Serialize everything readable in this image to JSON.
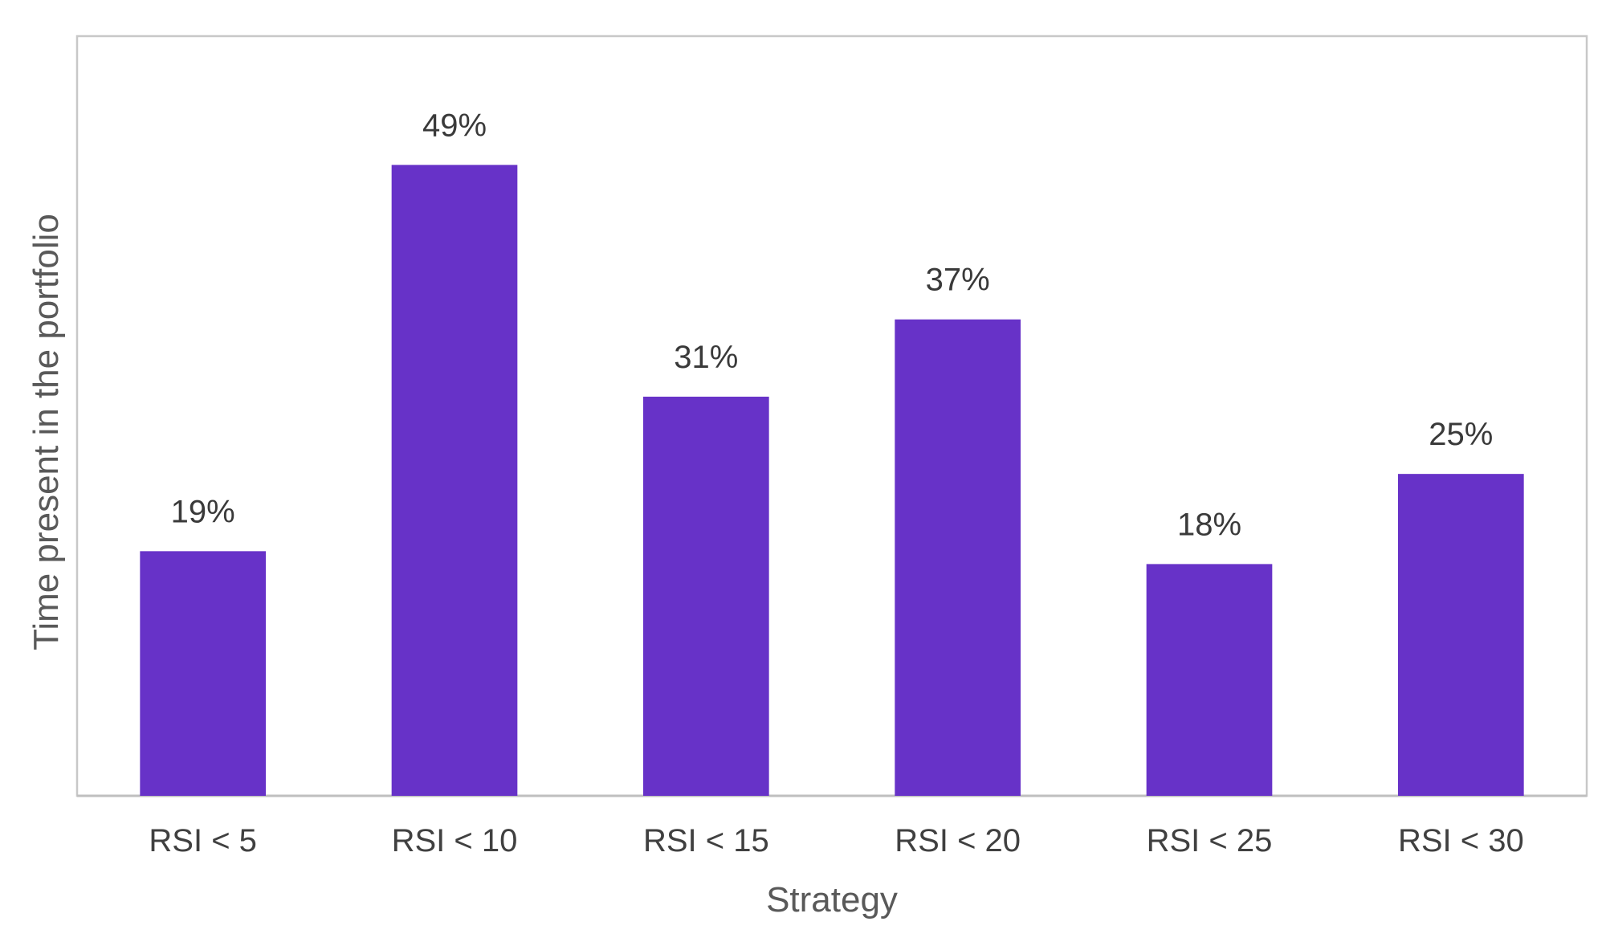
{
  "chart_data": {
    "type": "bar",
    "title": "",
    "xlabel": "Strategy",
    "ylabel": "Time present in the portfolio",
    "categories": [
      "RSI < 5",
      "RSI < 10",
      "RSI < 15",
      "RSI < 20",
      "RSI < 25",
      "RSI < 30"
    ],
    "values": [
      19,
      49,
      31,
      37,
      18,
      25
    ],
    "data_labels": [
      "19%",
      "49%",
      "31%",
      "37%",
      "18%",
      "25%"
    ],
    "unit": "%",
    "ylim": [
      0,
      59
    ],
    "grid": false,
    "legend": "none",
    "y_ticks_shown": false
  },
  "colors": {
    "bar": "#6732c8",
    "plot_border": "#c8c8c8",
    "axis_line": "#bfbfbf",
    "data_label": "#3a3a3a",
    "tick_label": "#404040",
    "axis_title": "#595959"
  }
}
